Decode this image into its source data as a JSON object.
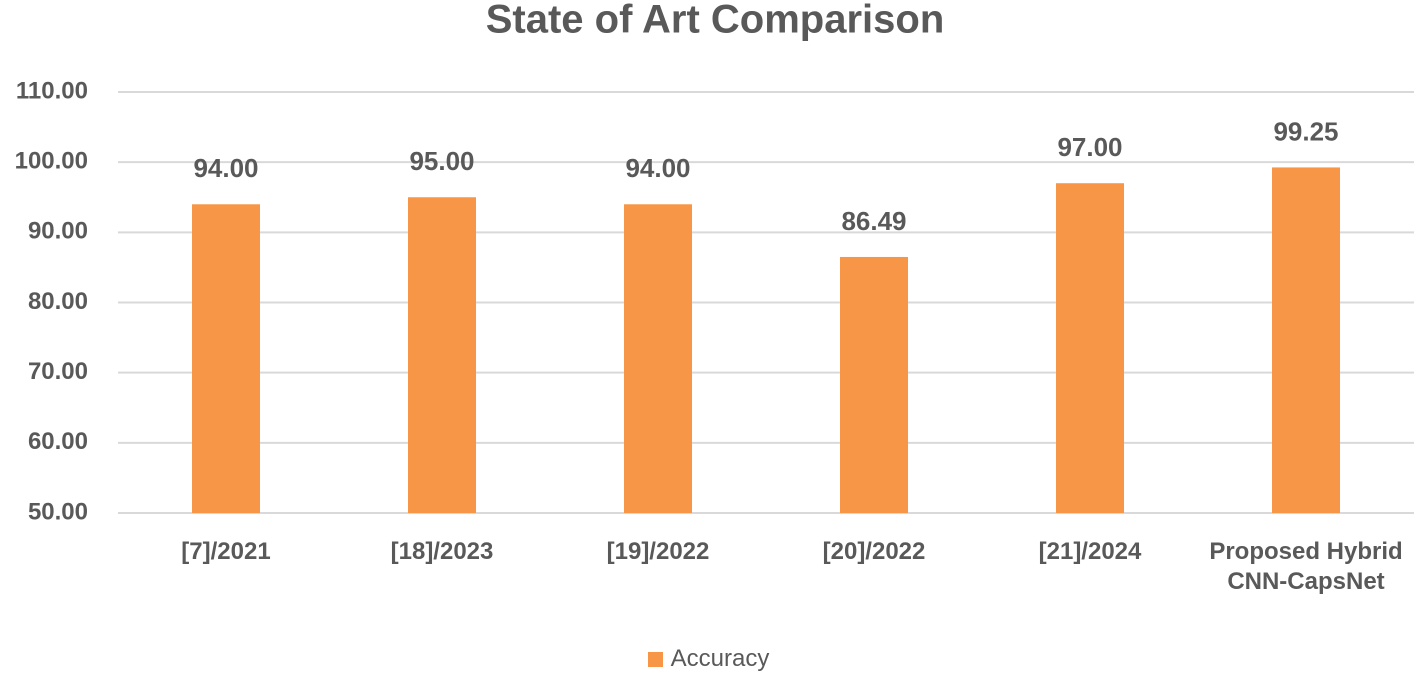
{
  "chart_data": {
    "type": "bar",
    "title": "State of Art Comparison",
    "categories": [
      "[7]/2021",
      "[18]/2023",
      "[19]/2022",
      "[20]/2022",
      "[21]/2024",
      "Proposed Hybrid CNN-CapsNet"
    ],
    "series": [
      {
        "name": "Accuracy",
        "color": "#f79646",
        "values": [
          94,
          95,
          94,
          86.49,
          97,
          99.25
        ],
        "value_labels": [
          "94.00",
          "95.00",
          "94.00",
          "86.49",
          "97.00",
          "99.25"
        ]
      }
    ],
    "ylim": [
      50,
      110
    ],
    "yticks": [
      {
        "value": 50,
        "label": "50.00"
      },
      {
        "value": 60,
        "label": "60.00"
      },
      {
        "value": 70,
        "label": "70.00"
      },
      {
        "value": 80,
        "label": "80.00"
      },
      {
        "value": 90,
        "label": "90.00"
      },
      {
        "value": 100,
        "label": "100.00"
      },
      {
        "value": 110,
        "label": "110.00"
      }
    ],
    "grid": true,
    "legend": "bottom"
  }
}
